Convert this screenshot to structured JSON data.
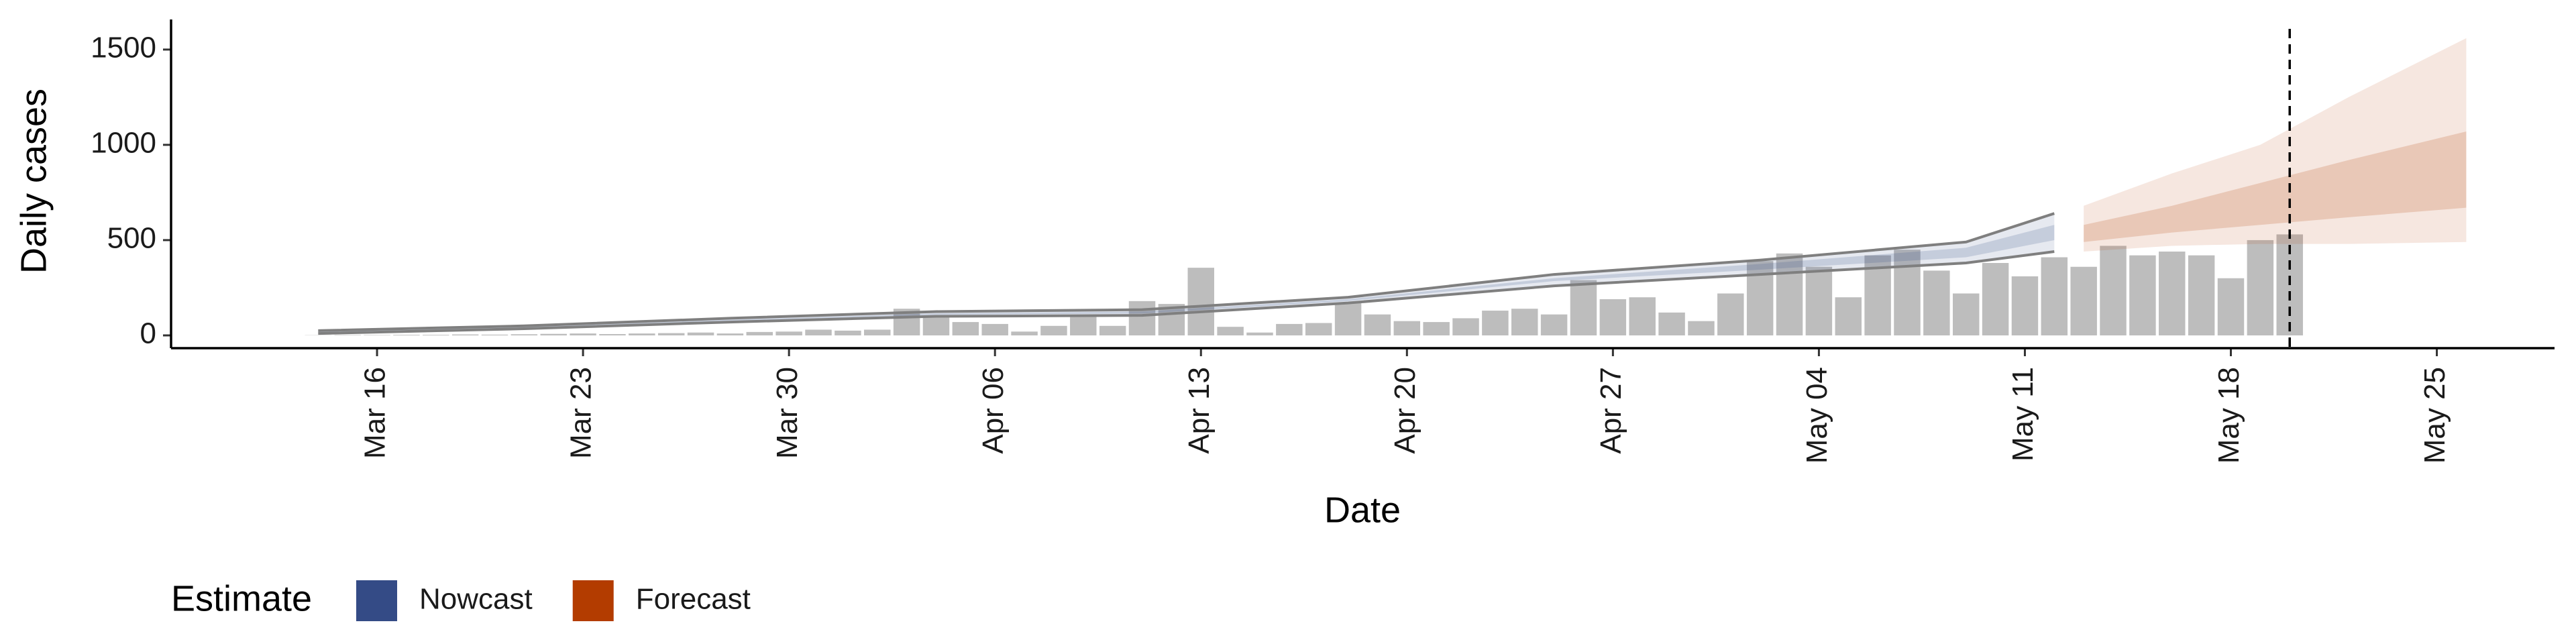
{
  "chart_data": {
    "type": "bar",
    "x_label": "Date",
    "y_label": "Daily cases",
    "legend_title": "Estimate",
    "legend_position": "bottom-left",
    "color": "#bdbdbd",
    "x": [
      "Mar 14",
      "Mar 15",
      "Mar 16",
      "Mar 17",
      "Mar 18",
      "Mar 19",
      "Mar 20",
      "Mar 21",
      "Mar 22",
      "Mar 23",
      "Mar 24",
      "Mar 25",
      "Mar 26",
      "Mar 27",
      "Mar 28",
      "Mar 29",
      "Mar 30",
      "Mar 31",
      "Apr 1",
      "Apr 2",
      "Apr 3",
      "Apr 4",
      "Apr 5",
      "Apr 6",
      "Apr 7",
      "Apr 8",
      "Apr 9",
      "Apr 10",
      "Apr 11",
      "Apr 12",
      "Apr 13",
      "Apr 14",
      "Apr 15",
      "Apr 16",
      "Apr 17",
      "Apr 18",
      "Apr 19",
      "Apr 20",
      "Apr 21",
      "Apr 22",
      "Apr 23",
      "Apr 24",
      "Apr 25",
      "Apr 26",
      "Apr 27",
      "Apr 28",
      "Apr 29",
      "Apr 30",
      "May 1",
      "May 2",
      "May 3",
      "May 4",
      "May 5",
      "May 6",
      "May 7",
      "May 8",
      "May 9",
      "May 10",
      "May 11",
      "May 12",
      "May 13",
      "May 14",
      "May 15",
      "May 16",
      "May 17",
      "May 18",
      "May 19",
      "May 20"
    ],
    "values": [
      1,
      2,
      2,
      3,
      3,
      5,
      4,
      6,
      8,
      10,
      7,
      10,
      12,
      15,
      10,
      18,
      20,
      30,
      25,
      30,
      140,
      95,
      70,
      60,
      20,
      50,
      100,
      50,
      180,
      165,
      355,
      45,
      15,
      60,
      65,
      170,
      110,
      75,
      70,
      90,
      130,
      140,
      110,
      290,
      190,
      200,
      120,
      75,
      220,
      390,
      430,
      360,
      200,
      420,
      450,
      340,
      220,
      380,
      310,
      410,
      360,
      470,
      420,
      440,
      420,
      300,
      500,
      530
    ],
    "bands": [
      {
        "name": "Nowcast",
        "color": "#344b86",
        "edge_color": "#7f7f7f",
        "x": [
          "Mar 14",
          "Mar 21",
          "Mar 28",
          "Apr 4",
          "Apr 11",
          "Apr 18",
          "Apr 25",
          "May 2",
          "May 9",
          "May 12"
        ],
        "upper90": [
          25,
          50,
          90,
          125,
          135,
          200,
          320,
          395,
          490,
          640
        ],
        "lower90": [
          10,
          35,
          70,
          100,
          105,
          170,
          260,
          320,
          380,
          440
        ],
        "upper50": [
          20,
          45,
          82,
          115,
          125,
          190,
          300,
          375,
          460,
          580
        ],
        "lower50": [
          15,
          40,
          76,
          108,
          115,
          180,
          285,
          345,
          410,
          500
        ]
      },
      {
        "name": "Forecast",
        "color": "#b33c00",
        "x": [
          "May 13",
          "May 16",
          "May 19",
          "May 22",
          "May 26"
        ],
        "upper90": [
          680,
          850,
          1000,
          1250,
          1560
        ],
        "lower90": [
          440,
          470,
          480,
          480,
          490
        ],
        "upper50": [
          580,
          680,
          800,
          920,
          1070
        ],
        "lower50": [
          490,
          540,
          580,
          620,
          670
        ]
      }
    ],
    "vline": "May 20",
    "xlim": [
      "Mar 9",
      "May 29"
    ],
    "xticks": [
      "Mar 16",
      "Mar 23",
      "Mar 30",
      "Apr 06",
      "Apr 13",
      "Apr 20",
      "Apr 27",
      "May 04",
      "May 11",
      "May 18",
      "May 25"
    ],
    "ylim": [
      -67,
      1658
    ],
    "yticks": [
      0,
      500,
      1000,
      1500
    ],
    "grid": false
  }
}
